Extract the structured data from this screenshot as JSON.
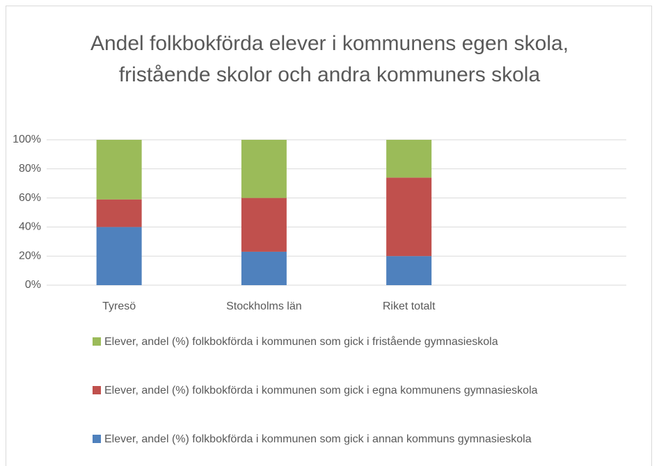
{
  "chart_data": {
    "type": "stacked_bar",
    "title": "Andel folkbokförda elever i kommunens egen skola, fristående skolor och andra kommuners skola",
    "categories": [
      "Tyresö",
      "Stockholms län",
      "Riket totalt",
      null
    ],
    "series": [
      {
        "name": "Elever, andel (%) folkbokförda i kommunen som gick i annan kommuns gymnasieskola",
        "color": "#4f81bd",
        "values": [
          40,
          23,
          20,
          null
        ]
      },
      {
        "name": "Elever, andel (%) folkbokförda i kommunen som gick i egna kommunens gymnasieskola",
        "color": "#c0504d",
        "values": [
          19,
          37,
          54,
          null
        ]
      },
      {
        "name": "Elever, andel (%) folkbokförda i kommunen som gick i fristående gymnasieskola",
        "color": "#9bbb59",
        "values": [
          41,
          40,
          26,
          null
        ]
      }
    ],
    "ylim": [
      0,
      100
    ],
    "yticks": [
      {
        "value": 0,
        "label": "0%"
      },
      {
        "value": 20,
        "label": "20%"
      },
      {
        "value": 40,
        "label": "40%"
      },
      {
        "value": 60,
        "label": "60%"
      },
      {
        "value": 80,
        "label": "80%"
      },
      {
        "value": 100,
        "label": "100%"
      }
    ],
    "grid": true,
    "legend": "bottom"
  }
}
